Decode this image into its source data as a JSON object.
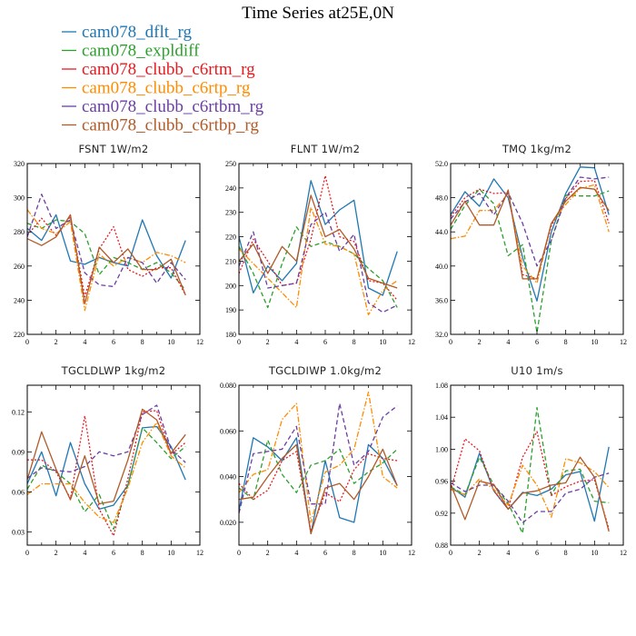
{
  "figure": {
    "title": "Time Series at25E,0N"
  },
  "legend": [
    {
      "name": "cam078_dflt_rg",
      "color": "#1f77b4"
    },
    {
      "name": "cam078_expldiff",
      "color": "#2ca02c"
    },
    {
      "name": "cam078_clubb_c6rtm_rg",
      "color": "#e8191f"
    },
    {
      "name": "cam078_clubb_c6rtp_rg",
      "color": "#ff8c00"
    },
    {
      "name": "cam078_clubb_c6rtbm_rg",
      "color": "#6a3fa0"
    },
    {
      "name": "cam078_clubb_c6rtbp_rg",
      "color": "#b05a28"
    }
  ],
  "chart_data": [
    {
      "type": "line",
      "title": "FSNT   1W/m2",
      "x": [
        0,
        1,
        2,
        3,
        4,
        5,
        6,
        7,
        8,
        9,
        10,
        11
      ],
      "xlim": [
        0,
        12
      ],
      "xticks": [
        "0",
        "2",
        "4",
        "6",
        "8",
        "10",
        "12"
      ],
      "ylim": [
        220,
        320
      ],
      "yticks": [
        "220",
        "240",
        "260",
        "280",
        "300",
        "320"
      ],
      "series": [
        {
          "name": "cam078_dflt_rg",
          "style": "solid",
          "values": [
            282,
            275,
            290,
            263,
            261,
            265,
            262,
            260,
            287,
            266,
            253,
            275
          ]
        },
        {
          "name": "cam078_expldiff",
          "style": "dashed",
          "values": [
            285,
            282,
            287,
            286,
            279,
            255,
            265,
            262,
            258,
            262,
            256,
            246
          ]
        },
        {
          "name": "cam078_clubb_c6rtm_rg",
          "style": "dotted",
          "values": [
            278,
            288,
            278,
            289,
            242,
            270,
            283,
            258,
            254,
            259,
            259,
            243
          ]
        },
        {
          "name": "cam078_clubb_c6rtp_rg",
          "style": "dashdot",
          "values": [
            293,
            282,
            279,
            286,
            234,
            267,
            260,
            265,
            262,
            268,
            266,
            262
          ]
        },
        {
          "name": "cam078_clubb_c6rtbm_rg",
          "style": "dashed",
          "values": [
            277,
            302,
            282,
            287,
            256,
            249,
            248,
            265,
            262,
            250,
            262,
            252
          ]
        },
        {
          "name": "cam078_clubb_c6rtbp_rg",
          "style": "solid",
          "values": [
            276,
            272,
            277,
            290,
            238,
            271,
            262,
            270,
            258,
            258,
            264,
            243
          ]
        }
      ]
    },
    {
      "type": "line",
      "title": "FLNT   1W/m2",
      "x": [
        0,
        1,
        2,
        3,
        4,
        5,
        6,
        7,
        8,
        9,
        10,
        11
      ],
      "xlim": [
        0,
        12
      ],
      "xticks": [
        "0",
        "2",
        "4",
        "6",
        "8",
        "10",
        "12"
      ],
      "ylim": [
        180,
        250
      ],
      "yticks": [
        "180",
        "190",
        "200",
        "210",
        "220",
        "230",
        "240",
        "250"
      ],
      "series": [
        {
          "name": "cam078_dflt_rg",
          "style": "solid",
          "values": [
            220,
            197,
            208,
            202,
            209,
            243,
            225,
            231,
            235,
            199,
            196,
            214
          ]
        },
        {
          "name": "cam078_expldiff",
          "style": "dashed",
          "values": [
            216,
            205,
            191,
            209,
            224,
            216,
            218,
            216,
            213,
            207,
            202,
            191
          ]
        },
        {
          "name": "cam078_clubb_c6rtm_rg",
          "style": "dotted",
          "values": [
            205,
            219,
            210,
            200,
            201,
            219,
            245,
            220,
            218,
            202,
            201,
            194
          ]
        },
        {
          "name": "cam078_clubb_c6rtp_rg",
          "style": "dashdot",
          "values": [
            215,
            209,
            203,
            197,
            191,
            232,
            217,
            216,
            213,
            188,
            198,
            202
          ]
        },
        {
          "name": "cam078_clubb_c6rtbm_rg",
          "style": "dashed",
          "values": [
            208,
            222,
            199,
            200,
            201,
            225,
            230,
            214,
            221,
            193,
            189,
            192
          ]
        },
        {
          "name": "cam078_clubb_c6rtbp_rg",
          "style": "solid",
          "values": [
            210,
            217,
            205,
            216,
            210,
            237,
            220,
            223,
            215,
            203,
            201,
            199
          ]
        }
      ]
    },
    {
      "type": "line",
      "title": "TMQ   1kg/m2",
      "x": [
        0,
        1,
        2,
        3,
        4,
        5,
        6,
        7,
        8,
        9,
        10,
        11
      ],
      "xlim": [
        0,
        12
      ],
      "xticks": [
        "0",
        "2",
        "4",
        "6",
        "8",
        "10",
        "12"
      ],
      "ylim": [
        32,
        52
      ],
      "yticks": [
        "32.0",
        "36.0",
        "40.0",
        "44.0",
        "48.0",
        "52.0"
      ],
      "series": [
        {
          "name": "cam078_dflt_rg",
          "style": "solid",
          "values": [
            46.0,
            48.7,
            47.0,
            50.2,
            48.0,
            41.0,
            35.9,
            44.0,
            48.5,
            51.6,
            51.5,
            46.0
          ]
        },
        {
          "name": "cam078_expldiff",
          "style": "dashed",
          "values": [
            44.3,
            47.1,
            49.0,
            47.3,
            41.2,
            42.5,
            32.2,
            43.0,
            48.3,
            48.2,
            48.2,
            48.8
          ]
        },
        {
          "name": "cam078_clubb_c6rtm_rg",
          "style": "dotted",
          "values": [
            45.8,
            48.0,
            49.0,
            48.5,
            48.6,
            39.0,
            38.5,
            44.7,
            47.9,
            49.9,
            50.0,
            45.0
          ]
        },
        {
          "name": "cam078_clubb_c6rtp_rg",
          "style": "dashdot",
          "values": [
            43.2,
            43.5,
            46.5,
            46.5,
            48.5,
            40.0,
            38.0,
            45.0,
            47.2,
            49.1,
            49.5,
            44.0
          ]
        },
        {
          "name": "cam078_clubb_c6rtbm_rg",
          "style": "dashed",
          "values": [
            45.5,
            47.5,
            48.5,
            46.0,
            48.6,
            45.0,
            40.0,
            43.0,
            48.0,
            50.4,
            50.2,
            50.4
          ]
        },
        {
          "name": "cam078_clubb_c6rtbp_rg",
          "style": "solid",
          "values": [
            44.8,
            47.6,
            44.8,
            44.8,
            48.9,
            38.5,
            38.5,
            45.0,
            47.6,
            49.2,
            49.0,
            46.5
          ]
        }
      ]
    },
    {
      "type": "line",
      "title": "TGCLDLWP   1kg/m2",
      "x": [
        0,
        1,
        2,
        3,
        4,
        5,
        6,
        7,
        8,
        9,
        10,
        11
      ],
      "xlim": [
        0,
        12
      ],
      "xticks": [
        "0",
        "2",
        "4",
        "6",
        "8",
        "10",
        "12"
      ],
      "ylim": [
        0.02,
        0.14
      ],
      "yticks": [
        "0.03",
        "0.06",
        "0.09",
        "0.12"
      ],
      "series": [
        {
          "name": "cam078_dflt_rg",
          "style": "solid",
          "values": [
            0.066,
            0.09,
            0.057,
            0.097,
            0.066,
            0.047,
            0.05,
            0.065,
            0.108,
            0.109,
            0.094,
            0.069
          ]
        },
        {
          "name": "cam078_expldiff",
          "style": "dashed",
          "values": [
            0.062,
            0.08,
            0.075,
            0.066,
            0.045,
            0.058,
            0.032,
            0.065,
            0.108,
            0.097,
            0.085,
            0.094
          ]
        },
        {
          "name": "cam078_clubb_c6rtm_rg",
          "style": "dotted",
          "values": [
            0.084,
            0.084,
            0.075,
            0.055,
            0.117,
            0.047,
            0.027,
            0.07,
            0.12,
            0.121,
            0.088,
            0.097
          ]
        },
        {
          "name": "cam078_clubb_c6rtp_rg",
          "style": "dashdot",
          "values": [
            0.058,
            0.066,
            0.066,
            0.066,
            0.052,
            0.041,
            0.037,
            0.063,
            0.097,
            0.112,
            0.087,
            0.078
          ]
        },
        {
          "name": "cam078_clubb_c6rtbm_rg",
          "style": "dashed",
          "values": [
            0.07,
            0.078,
            0.076,
            0.075,
            0.079,
            0.09,
            0.087,
            0.09,
            0.118,
            0.125,
            0.092,
            0.082
          ]
        },
        {
          "name": "cam078_clubb_c6rtbp_rg",
          "style": "solid",
          "values": [
            0.069,
            0.105,
            0.077,
            0.054,
            0.087,
            0.051,
            0.053,
            0.084,
            0.122,
            0.114,
            0.089,
            0.103
          ]
        }
      ]
    },
    {
      "type": "line",
      "title": "TGCLDIWP   1.0kg/m2",
      "x": [
        0,
        1,
        2,
        3,
        4,
        5,
        6,
        7,
        8,
        9,
        10,
        11
      ],
      "xlim": [
        0,
        12
      ],
      "xticks": [
        "0",
        "2",
        "4",
        "6",
        "8",
        "10",
        "12"
      ],
      "ylim": [
        0.01,
        0.08
      ],
      "yticks": [
        "0.020",
        "0.040",
        "0.060",
        "0.080"
      ],
      "series": [
        {
          "name": "cam078_dflt_rg",
          "style": "solid",
          "values": [
            0.025,
            0.057,
            0.053,
            0.047,
            0.057,
            0.015,
            0.047,
            0.022,
            0.02,
            0.054,
            0.048,
            0.036
          ]
        },
        {
          "name": "cam078_expldiff",
          "style": "dashed",
          "values": [
            0.035,
            0.03,
            0.056,
            0.041,
            0.033,
            0.045,
            0.047,
            0.052,
            0.037,
            0.042,
            0.046,
            0.052
          ]
        },
        {
          "name": "cam078_clubb_c6rtm_rg",
          "style": "dotted",
          "values": [
            0.037,
            0.03,
            0.034,
            0.047,
            0.051,
            0.016,
            0.033,
            0.029,
            0.043,
            0.05,
            0.048,
            0.047
          ]
        },
        {
          "name": "cam078_clubb_c6rtp_rg",
          "style": "dashdot",
          "values": [
            0.033,
            0.041,
            0.043,
            0.065,
            0.072,
            0.02,
            0.042,
            0.045,
            0.052,
            0.077,
            0.04,
            0.035
          ]
        },
        {
          "name": "cam078_clubb_c6rtbm_rg",
          "style": "dashed",
          "values": [
            0.024,
            0.05,
            0.051,
            0.052,
            0.062,
            0.028,
            0.028,
            0.072,
            0.045,
            0.051,
            0.066,
            0.071
          ]
        },
        {
          "name": "cam078_clubb_c6rtbp_rg",
          "style": "solid",
          "values": [
            0.03,
            0.031,
            0.04,
            0.048,
            0.054,
            0.015,
            0.035,
            0.037,
            0.03,
            0.04,
            0.052,
            0.036
          ]
        }
      ]
    },
    {
      "type": "line",
      "title": "U10   1m/s",
      "x": [
        0,
        1,
        2,
        3,
        4,
        5,
        6,
        7,
        8,
        9,
        10,
        11
      ],
      "xlim": [
        0,
        12
      ],
      "xticks": [
        "0",
        "2",
        "4",
        "6",
        "8",
        "10",
        "12"
      ],
      "ylim": [
        0.88,
        1.08
      ],
      "yticks": [
        "0.88",
        "0.92",
        "0.96",
        "1.00",
        "1.04",
        "1.08"
      ],
      "series": [
        {
          "name": "cam078_dflt_rg",
          "style": "solid",
          "values": [
            0.953,
            0.94,
            0.995,
            0.948,
            0.925,
            0.946,
            0.942,
            0.95,
            0.968,
            0.972,
            0.91,
            1.003
          ]
        },
        {
          "name": "cam078_expldiff",
          "style": "dashed",
          "values": [
            0.953,
            0.943,
            0.99,
            0.955,
            0.932,
            0.895,
            1.052,
            0.943,
            0.973,
            0.975,
            0.935,
            0.933
          ]
        },
        {
          "name": "cam078_clubb_c6rtm_rg",
          "style": "dotted",
          "values": [
            0.948,
            1.013,
            0.998,
            0.948,
            0.925,
            0.99,
            1.022,
            0.942,
            0.953,
            0.96,
            0.962,
            0.9
          ]
        },
        {
          "name": "cam078_clubb_c6rtp_rg",
          "style": "dashdot",
          "values": [
            0.95,
            0.943,
            0.963,
            0.95,
            0.93,
            0.98,
            0.955,
            0.915,
            0.988,
            0.983,
            0.972,
            0.952
          ]
        },
        {
          "name": "cam078_clubb_c6rtbm_rg",
          "style": "dashed",
          "values": [
            0.958,
            0.947,
            0.955,
            0.955,
            0.935,
            0.908,
            0.922,
            0.922,
            0.945,
            0.95,
            0.965,
            0.97
          ]
        },
        {
          "name": "cam078_clubb_c6rtbp_rg",
          "style": "solid",
          "values": [
            0.956,
            0.912,
            0.96,
            0.956,
            0.925,
            0.945,
            0.948,
            0.955,
            0.958,
            0.99,
            0.965,
            0.897
          ]
        }
      ]
    }
  ]
}
